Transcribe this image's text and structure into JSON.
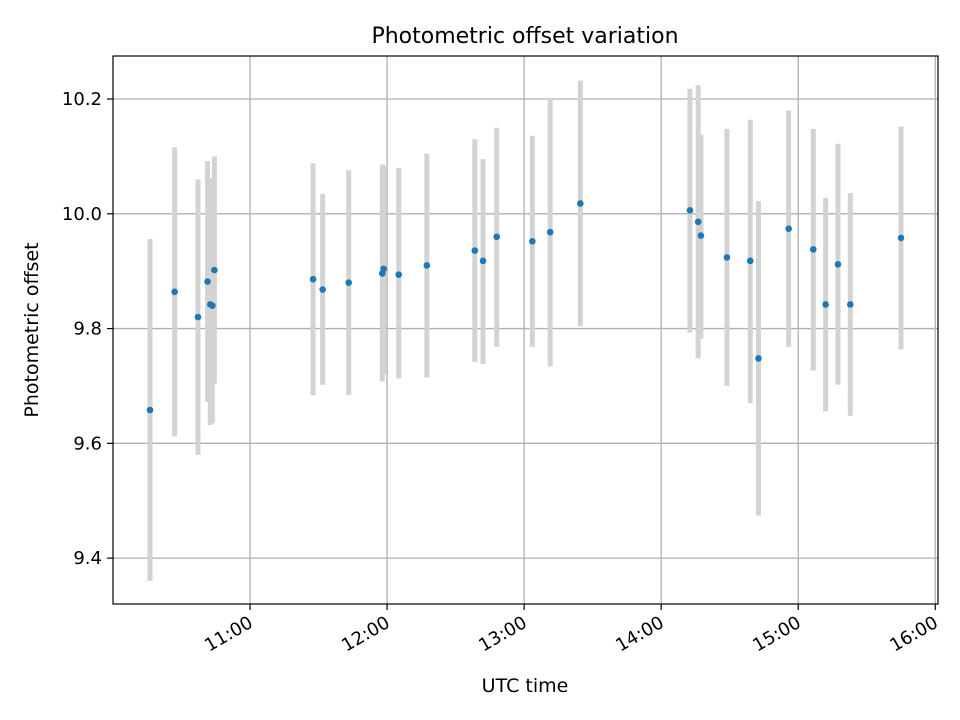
{
  "chart_data": {
    "type": "scatter",
    "title": "Photometric offset variation",
    "xlabel": "UTC time",
    "ylabel": "Photometric offset",
    "grid": true,
    "x_unit": "hours (UTC)",
    "xlim": [
      10.0,
      16.02
    ],
    "ylim": [
      9.32,
      10.275
    ],
    "x_ticks": [
      {
        "value": 11,
        "label": "11:00"
      },
      {
        "value": 12,
        "label": "12:00"
      },
      {
        "value": 13,
        "label": "13:00"
      },
      {
        "value": 14,
        "label": "14:00"
      },
      {
        "value": 15,
        "label": "15:00"
      },
      {
        "value": 16,
        "label": "16:00"
      }
    ],
    "y_ticks": [
      {
        "value": 9.4,
        "label": "9.4"
      },
      {
        "value": 9.6,
        "label": "9.6"
      },
      {
        "value": 9.8,
        "label": "9.8"
      },
      {
        "value": 10.0,
        "label": "10.0"
      },
      {
        "value": 10.2,
        "label": "10.2"
      }
    ],
    "colors": {
      "point": "#1f77b4",
      "errorbar": "#d3d3d3",
      "grid": "#b0b0b0",
      "axis": "#000000"
    },
    "series": [
      {
        "name": "offset",
        "points": [
          {
            "x": 10.27,
            "y": 9.658,
            "lo": 9.36,
            "hi": 9.956
          },
          {
            "x": 10.45,
            "y": 9.864,
            "lo": 9.612,
            "hi": 10.116
          },
          {
            "x": 10.62,
            "y": 9.82,
            "lo": 9.58,
            "hi": 10.06
          },
          {
            "x": 10.69,
            "y": 9.882,
            "lo": 9.672,
            "hi": 10.092
          },
          {
            "x": 10.71,
            "y": 9.842,
            "lo": 9.632,
            "hi": 10.062
          },
          {
            "x": 10.725,
            "y": 9.84,
            "lo": 9.635,
            "hi": 10.06
          },
          {
            "x": 10.74,
            "y": 9.902,
            "lo": 9.704,
            "hi": 10.1
          },
          {
            "x": 11.46,
            "y": 9.886,
            "lo": 9.684,
            "hi": 10.088
          },
          {
            "x": 11.53,
            "y": 9.868,
            "lo": 9.702,
            "hi": 10.035
          },
          {
            "x": 11.72,
            "y": 9.88,
            "lo": 9.684,
            "hi": 10.076
          },
          {
            "x": 11.965,
            "y": 9.896,
            "lo": 9.708,
            "hi": 10.086
          },
          {
            "x": 11.975,
            "y": 9.904,
            "lo": 9.72,
            "hi": 10.084
          },
          {
            "x": 12.085,
            "y": 9.894,
            "lo": 9.713,
            "hi": 10.08
          },
          {
            "x": 12.29,
            "y": 9.91,
            "lo": 9.715,
            "hi": 10.105
          },
          {
            "x": 12.64,
            "y": 9.936,
            "lo": 9.742,
            "hi": 10.13
          },
          {
            "x": 12.7,
            "y": 9.918,
            "lo": 9.738,
            "hi": 10.095
          },
          {
            "x": 12.8,
            "y": 9.96,
            "lo": 9.768,
            "hi": 10.15
          },
          {
            "x": 13.06,
            "y": 9.952,
            "lo": 9.768,
            "hi": 10.136
          },
          {
            "x": 13.19,
            "y": 9.968,
            "lo": 9.734,
            "hi": 10.202
          },
          {
            "x": 13.41,
            "y": 10.018,
            "lo": 9.804,
            "hi": 10.232
          },
          {
            "x": 14.21,
            "y": 10.006,
            "lo": 9.793,
            "hi": 10.218
          },
          {
            "x": 14.27,
            "y": 9.986,
            "lo": 9.748,
            "hi": 10.224
          },
          {
            "x": 14.29,
            "y": 9.962,
            "lo": 9.782,
            "hi": 10.138
          },
          {
            "x": 14.48,
            "y": 9.924,
            "lo": 9.7,
            "hi": 10.148
          },
          {
            "x": 14.65,
            "y": 9.918,
            "lo": 9.67,
            "hi": 10.164
          },
          {
            "x": 14.71,
            "y": 9.748,
            "lo": 9.474,
            "hi": 10.022
          },
          {
            "x": 14.93,
            "y": 9.974,
            "lo": 9.768,
            "hi": 10.18
          },
          {
            "x": 15.11,
            "y": 9.938,
            "lo": 9.727,
            "hi": 10.148
          },
          {
            "x": 15.2,
            "y": 9.842,
            "lo": 9.656,
            "hi": 10.028
          },
          {
            "x": 15.29,
            "y": 9.912,
            "lo": 9.702,
            "hi": 10.122
          },
          {
            "x": 15.38,
            "y": 9.842,
            "lo": 9.648,
            "hi": 10.036
          },
          {
            "x": 15.75,
            "y": 9.958,
            "lo": 9.764,
            "hi": 10.152
          }
        ]
      }
    ]
  }
}
